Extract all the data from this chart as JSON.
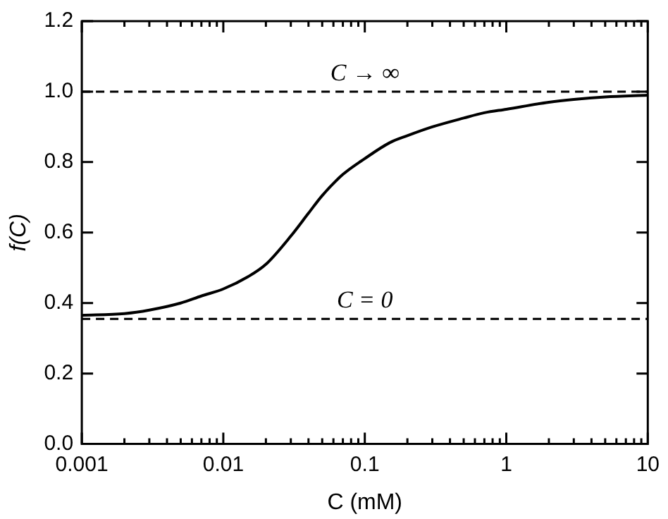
{
  "chart_data": {
    "type": "line",
    "xlabel": "C (mM)",
    "ylabel": "f(C)",
    "x": [
      0.001,
      0.002,
      0.003,
      0.005,
      0.007,
      0.01,
      0.015,
      0.02,
      0.03,
      0.04,
      0.05,
      0.07,
      0.1,
      0.15,
      0.2,
      0.3,
      0.5,
      0.7,
      1,
      2,
      3,
      5,
      10
    ],
    "series": [
      {
        "color": "#000000",
        "values": [
          0.365,
          0.37,
          0.38,
          0.4,
          0.42,
          0.44,
          0.475,
          0.51,
          0.59,
          0.655,
          0.705,
          0.765,
          0.81,
          0.855,
          0.875,
          0.9,
          0.925,
          0.94,
          0.95,
          0.97,
          0.978,
          0.985,
          0.99
        ]
      }
    ],
    "log": "x",
    "xlim": [
      0.001,
      10
    ],
    "xticks": [
      0.001,
      {
        "value": 0.002,
        "label": null
      },
      {
        "value": 0.003,
        "label": null
      },
      {
        "value": 0.004,
        "label": null
      },
      {
        "value": 0.005,
        "label": null
      },
      {
        "value": 0.006,
        "label": null
      },
      {
        "value": 0.007,
        "label": null
      },
      {
        "value": 0.008,
        "label": null
      },
      {
        "value": 0.009,
        "label": null
      },
      0.01,
      {
        "value": 0.02,
        "label": null
      },
      {
        "value": 0.03,
        "label": null
      },
      {
        "value": 0.04,
        "label": null
      },
      {
        "value": 0.05,
        "label": null
      },
      {
        "value": 0.06,
        "label": null
      },
      {
        "value": 0.07,
        "label": null
      },
      {
        "value": 0.08,
        "label": null
      },
      {
        "value": 0.09,
        "label": null
      },
      0.1,
      {
        "value": 0.2,
        "label": null
      },
      {
        "value": 0.3,
        "label": null
      },
      {
        "value": 0.4,
        "label": null
      },
      {
        "value": 0.5,
        "label": null
      },
      {
        "value": 0.6,
        "label": null
      },
      {
        "value": 0.7,
        "label": null
      },
      {
        "value": 0.8,
        "label": null
      },
      {
        "value": 0.9,
        "label": null
      },
      1,
      {
        "value": 2,
        "label": null
      },
      {
        "value": 3,
        "label": null
      },
      {
        "value": 4,
        "label": null
      },
      {
        "value": 5,
        "label": null
      },
      {
        "value": 6,
        "label": null
      },
      {
        "value": 7,
        "label": null
      },
      {
        "value": 8,
        "label": null
      },
      {
        "value": 9,
        "label": null
      },
      10
    ],
    "ylim": [
      0,
      1.2
    ],
    "yticks": [
      {
        "value": 0,
        "label": "0.0"
      },
      0.2,
      0.4,
      0.6,
      0.8,
      {
        "value": 1,
        "label": "1.0"
      },
      1.2
    ],
    "ref_lines": [
      {
        "axis": "y",
        "value": 1,
        "label": "C → ∞",
        "line_style": "dashed",
        "color": "#000000"
      },
      {
        "axis": "y",
        "value": 0.355,
        "label": "C = 0",
        "line_style": "dashed",
        "color": "#000000"
      }
    ],
    "grid": false,
    "legend": false,
    "marker": "none",
    "line_style": "solid"
  }
}
